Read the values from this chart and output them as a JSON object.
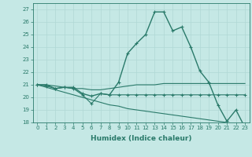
{
  "lines": [
    {
      "x": [
        0,
        1,
        2,
        3,
        4,
        5,
        6,
        7,
        8,
        9,
        10,
        11,
        12,
        13,
        14,
        15,
        16,
        17,
        18,
        19,
        20,
        21,
        22,
        23
      ],
      "y": [
        21.0,
        21.0,
        20.7,
        20.8,
        20.8,
        20.3,
        20.1,
        20.3,
        20.2,
        21.2,
        23.5,
        24.3,
        25.0,
        26.8,
        26.8,
        25.3,
        25.6,
        24.0,
        22.1,
        21.2,
        19.4,
        18.1,
        19.0,
        17.6
      ],
      "color": "#2a7a6a",
      "lw": 1.0,
      "marker": "+",
      "ms": 3.5
    },
    {
      "x": [
        0,
        1,
        2,
        3,
        4,
        5,
        6,
        7,
        8,
        9,
        10,
        11,
        12,
        13,
        14,
        15,
        16,
        17,
        18,
        19,
        20,
        21,
        22,
        23
      ],
      "y": [
        21.0,
        21.0,
        20.9,
        20.8,
        20.7,
        20.7,
        20.6,
        20.6,
        20.7,
        20.8,
        20.9,
        21.0,
        21.0,
        21.0,
        21.1,
        21.1,
        21.1,
        21.1,
        21.1,
        21.1,
        21.1,
        21.1,
        21.1,
        21.1
      ],
      "color": "#2a7a6a",
      "lw": 0.8,
      "marker": null,
      "ms": 0
    },
    {
      "x": [
        0,
        1,
        2,
        3,
        4,
        5,
        6,
        7,
        8,
        9,
        10,
        11,
        12,
        13,
        14,
        15,
        16,
        17,
        18,
        19,
        20,
        21,
        22,
        23
      ],
      "y": [
        21.0,
        20.8,
        20.6,
        20.4,
        20.2,
        20.0,
        19.8,
        19.6,
        19.4,
        19.3,
        19.1,
        19.0,
        18.9,
        18.8,
        18.7,
        18.6,
        18.5,
        18.4,
        18.3,
        18.2,
        18.1,
        18.0,
        17.9,
        17.7
      ],
      "color": "#2a7a6a",
      "lw": 0.8,
      "marker": null,
      "ms": 0
    },
    {
      "x": [
        0,
        1,
        2,
        3,
        4,
        5,
        6,
        7,
        8,
        9,
        10,
        11,
        12,
        13,
        14,
        15,
        16,
        17,
        18,
        19,
        20,
        21,
        22,
        23
      ],
      "y": [
        21.0,
        20.9,
        20.7,
        20.8,
        20.7,
        20.2,
        19.5,
        20.3,
        20.2,
        20.2,
        20.2,
        20.2,
        20.2,
        20.2,
        20.2,
        20.2,
        20.2,
        20.2,
        20.2,
        20.2,
        20.2,
        20.2,
        20.2,
        20.2
      ],
      "color": "#2a7a6a",
      "lw": 0.8,
      "marker": "+",
      "ms": 3.0
    }
  ],
  "xlim": [
    -0.5,
    23.5
  ],
  "ylim": [
    18.0,
    27.5
  ],
  "yticks": [
    18,
    19,
    20,
    21,
    22,
    23,
    24,
    25,
    26,
    27
  ],
  "xticks": [
    0,
    1,
    2,
    3,
    4,
    5,
    6,
    7,
    8,
    9,
    10,
    11,
    12,
    13,
    14,
    15,
    16,
    17,
    18,
    19,
    20,
    21,
    22,
    23
  ],
  "xlabel": "Humidex (Indice chaleur)",
  "bg_color": "#c5e8e5",
  "grid_color": "#b0d8d5",
  "line_color": "#2a7a6a",
  "tick_fontsize": 5.0,
  "label_fontsize": 6.5
}
